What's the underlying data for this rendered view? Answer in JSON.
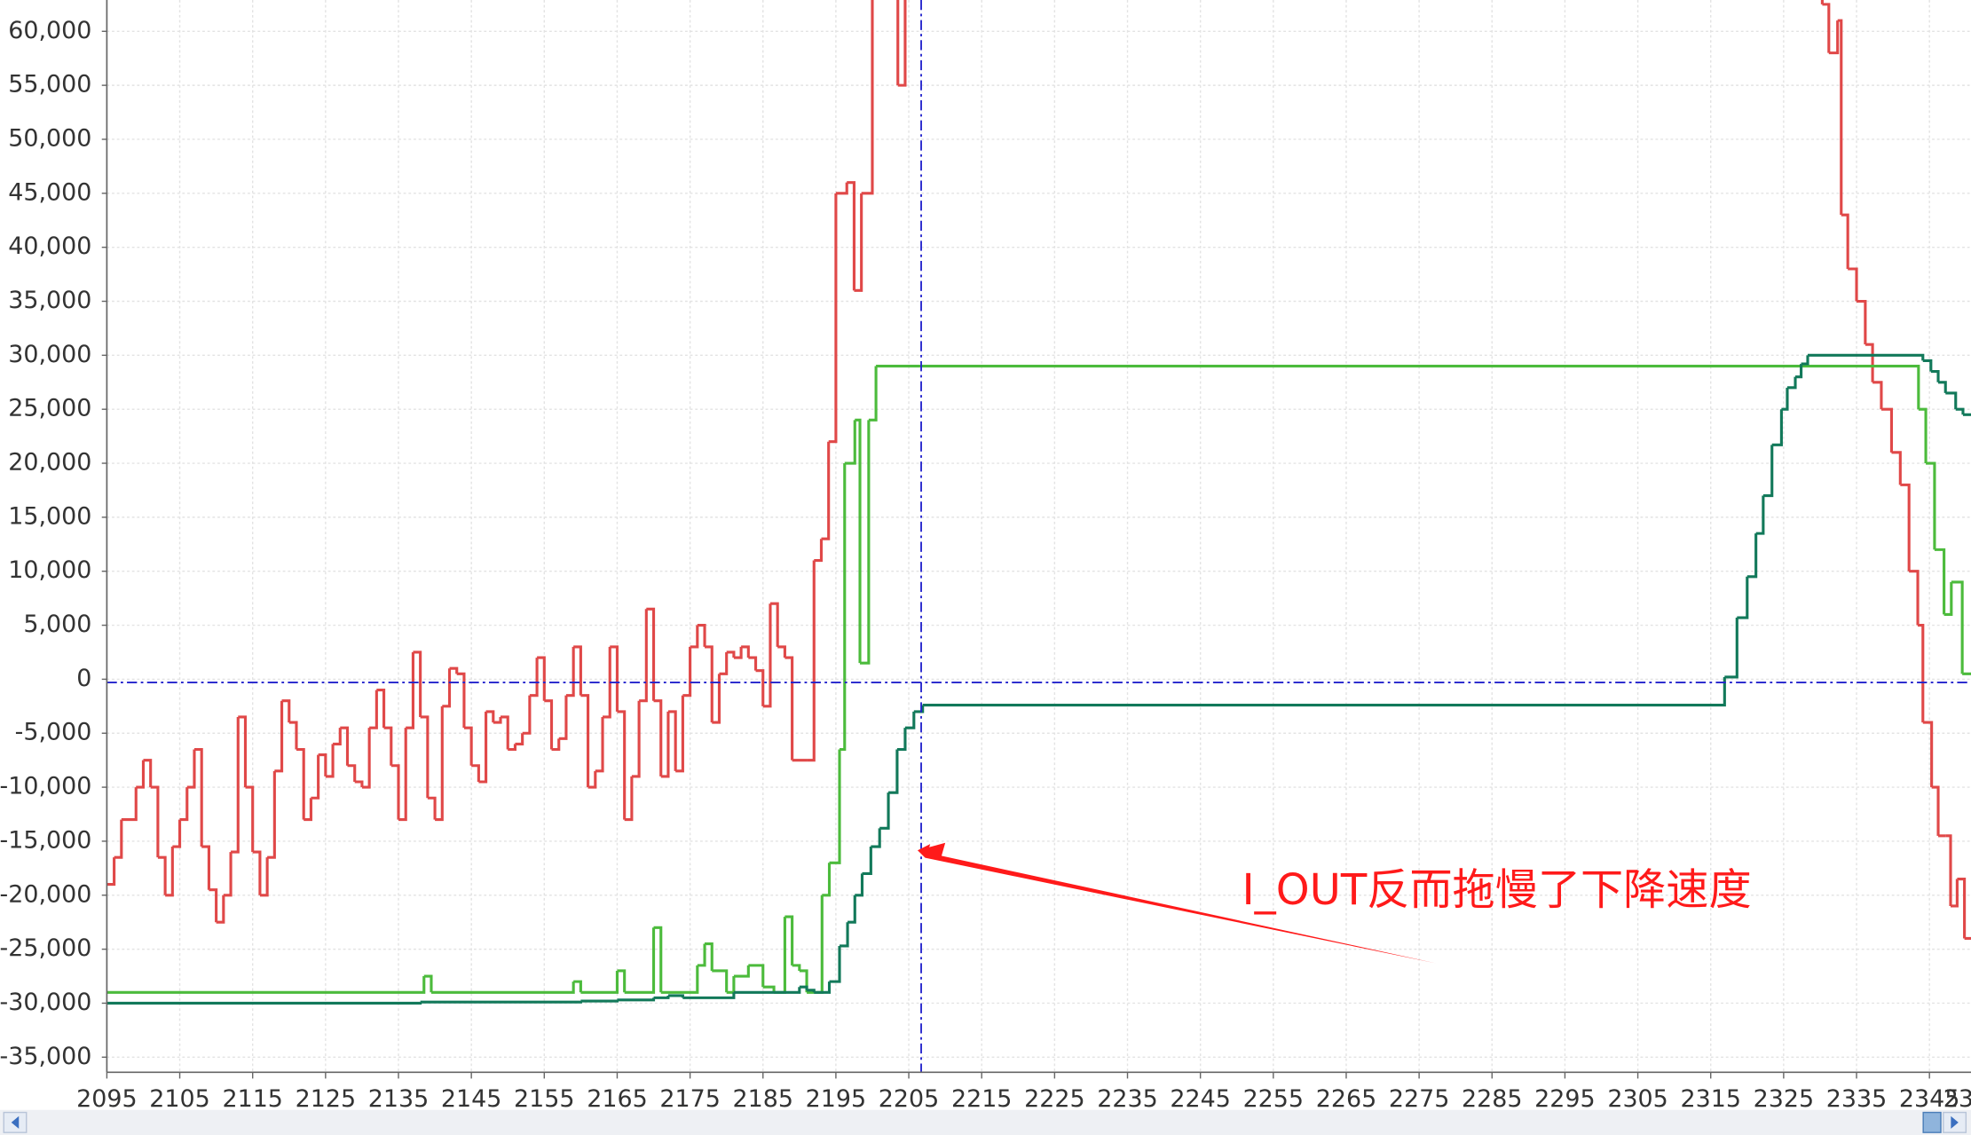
{
  "chart_data": {
    "type": "line",
    "step": true,
    "grid": true,
    "xlim": [
      2095,
      2350.7
    ],
    "ylim": [
      -36400,
      62900
    ],
    "xticks": [
      2095,
      2105,
      2115,
      2125,
      2135,
      2145,
      2155,
      2165,
      2175,
      2185,
      2195,
      2205,
      2215,
      2225,
      2235,
      2245,
      2255,
      2265,
      2275,
      2285,
      2295,
      2305,
      2315,
      2325,
      2335,
      2345,
      {
        "value": 2355,
        "label": "23"
      }
    ],
    "yticks": [
      {
        "value": 60000,
        "label": "60,000"
      },
      {
        "value": 55000,
        "label": "55,000"
      },
      {
        "value": 50000,
        "label": "50,000"
      },
      {
        "value": 45000,
        "label": "45,000"
      },
      {
        "value": 40000,
        "label": "40,000"
      },
      {
        "value": 35000,
        "label": "35,000"
      },
      {
        "value": 30000,
        "label": "30,000"
      },
      {
        "value": 25000,
        "label": "25,000"
      },
      {
        "value": 20000,
        "label": "20,000"
      },
      {
        "value": 15000,
        "label": "15,000"
      },
      {
        "value": 10000,
        "label": "10,000"
      },
      {
        "value": 5000,
        "label": "5,000"
      },
      0,
      {
        "value": -5000,
        "label": "-5,000"
      },
      {
        "value": -10000,
        "label": "-10,000"
      },
      {
        "value": -15000,
        "label": "-15,000"
      },
      {
        "value": -20000,
        "label": "-20,000"
      },
      {
        "value": -25000,
        "label": "-25,000"
      },
      {
        "value": -30000,
        "label": "-30,000"
      },
      {
        "value": -35000,
        "label": "-35,000"
      }
    ],
    "cursor": {
      "x": 2206.7,
      "y": -300,
      "color": "#2222cc"
    },
    "annotation": {
      "text": "I_OUT反而拖慢了下降速度",
      "color": "#ff1a1a"
    },
    "series": [
      {
        "color": "#e04848",
        "x": [
          2095,
          2096,
          2097,
          2099,
          2100,
          2101,
          2102,
          2103,
          2104,
          2105,
          2106,
          2107,
          2108,
          2109,
          2110,
          2111,
          2112,
          2113,
          2114,
          2115,
          2116,
          2117,
          2118,
          2119,
          2120,
          2121,
          2122,
          2123,
          2124,
          2125,
          2126,
          2127,
          2128,
          2129,
          2130,
          2131,
          2132,
          2133,
          2134,
          2135,
          2136,
          2137,
          2138,
          2139,
          2140,
          2141,
          2142,
          2143,
          2144,
          2145,
          2146,
          2147,
          2148,
          2149,
          2150,
          2151,
          2152,
          2153,
          2154,
          2155,
          2156,
          2157,
          2158,
          2159,
          2160,
          2161,
          2162,
          2163,
          2164,
          2165,
          2166,
          2167,
          2168,
          2169,
          2170,
          2171,
          2172,
          2173,
          2174,
          2175,
          2176,
          2177,
          2178,
          2179,
          2180,
          2181,
          2182,
          2183,
          2184,
          2185,
          2186,
          2187,
          2188,
          2189,
          2191,
          2192,
          2193,
          2194,
          2195,
          2196.5,
          2197.5,
          2198.5,
          2200,
          2203.5,
          2204.5,
          2330.3,
          2331.2,
          2332.4,
          2332.9,
          2333.8,
          2335,
          2336.2,
          2337.2,
          2338.4,
          2339.8,
          2341,
          2342.2,
          2343.4,
          2344.1,
          2345.3,
          2346.2,
          2347.2,
          2347.9,
          2348.8,
          2349.8
        ],
        "values": [
          -19000,
          -16500,
          -13000,
          -10000,
          -7500,
          -10000,
          -16500,
          -20000,
          -15500,
          -13000,
          -10000,
          -6500,
          -15500,
          -19500,
          -22500,
          -20000,
          -16000,
          -3500,
          -10000,
          -16000,
          -20000,
          -16500,
          -8500,
          -2000,
          -4000,
          -6500,
          -13000,
          -11000,
          -7000,
          -9000,
          -6000,
          -4500,
          -8000,
          -9500,
          -10000,
          -4500,
          -1000,
          -4500,
          -8000,
          -13000,
          -4500,
          2500,
          -3500,
          -11000,
          -13000,
          -2500,
          1000,
          500,
          -4500,
          -8000,
          -9500,
          -3000,
          -4000,
          -3500,
          -6500,
          -6000,
          -5000,
          -1500,
          2000,
          -2000,
          -6500,
          -5500,
          -1500,
          3000,
          -1500,
          -10000,
          -8500,
          -3500,
          3000,
          -3000,
          -13000,
          -9000,
          -2000,
          6500,
          -2000,
          -9000,
          -3000,
          -8500,
          -1500,
          3000,
          5000,
          3000,
          -4000,
          500,
          2500,
          2000,
          3000,
          2000,
          800,
          -2500,
          7000,
          3000,
          2000,
          -7500,
          -7500,
          11000,
          13000,
          22000,
          45000,
          46000,
          36000,
          45000,
          70000,
          55000,
          70000,
          62500,
          58000,
          61000,
          43000,
          38000,
          35000,
          31000,
          27500,
          25000,
          21000,
          18000,
          10000,
          5000,
          -4000,
          -10000,
          -14500,
          -14500,
          -21000,
          -18500,
          -24000
        ]
      },
      {
        "color": "#4cbb3c",
        "x": [
          2095,
          2138.5,
          2139.5,
          2159,
          2160,
          2165,
          2166,
          2170,
          2171,
          2176,
          2177,
          2178,
          2180,
          2181,
          2183,
          2185,
          2186.5,
          2188,
          2189,
          2190,
          2191,
          2193.1,
          2194.1,
          2195.5,
          2196.2,
          2197.6,
          2198.3,
          2199.5,
          2200.5,
          2343.5,
          2344.5,
          2345.7,
          2347,
          2348,
          2349.5
        ],
        "values": [
          -29000,
          -27500,
          -29000,
          -28000,
          -29000,
          -27000,
          -29000,
          -23000,
          -29000,
          -26500,
          -24500,
          -27000,
          -29000,
          -27500,
          -26500,
          -28500,
          -29000,
          -22000,
          -26500,
          -27000,
          -29000,
          -20000,
          -17000,
          -6500,
          20000,
          24000,
          1500,
          24000,
          29000,
          25000,
          20000,
          12000,
          6000,
          9000,
          500
        ]
      },
      {
        "color": "#12795a",
        "x": [
          2095,
          2138,
          2160,
          2165,
          2170,
          2172,
          2174,
          2181,
          2190,
          2191,
          2192,
          2194.1,
          2195.5,
          2196.6,
          2197.6,
          2198.6,
          2199.8,
          2201,
          2202.2,
          2203.4,
          2204.5,
          2205.7,
          2206.9,
          2316.9,
          2318.6,
          2320,
          2321.2,
          2322.2,
          2323.4,
          2324.7,
          2325.5,
          2326.6,
          2327.4,
          2328.3,
          2344.1,
          2345.2,
          2346.2,
          2347.2,
          2348.6,
          2349.6
        ],
        "values": [
          -30000,
          -29900,
          -29800,
          -29700,
          -29500,
          -29300,
          -29500,
          -29000,
          -28500,
          -28800,
          -29000,
          -28000,
          -24700,
          -22500,
          -20000,
          -18000,
          -15500,
          -13800,
          -10500,
          -6500,
          -4500,
          -3000,
          -2400,
          200,
          5700,
          9500,
          13500,
          17000,
          21700,
          25000,
          27000,
          28000,
          29200,
          30000,
          29500,
          28500,
          27500,
          26500,
          25000,
          24500
        ]
      }
    ]
  }
}
